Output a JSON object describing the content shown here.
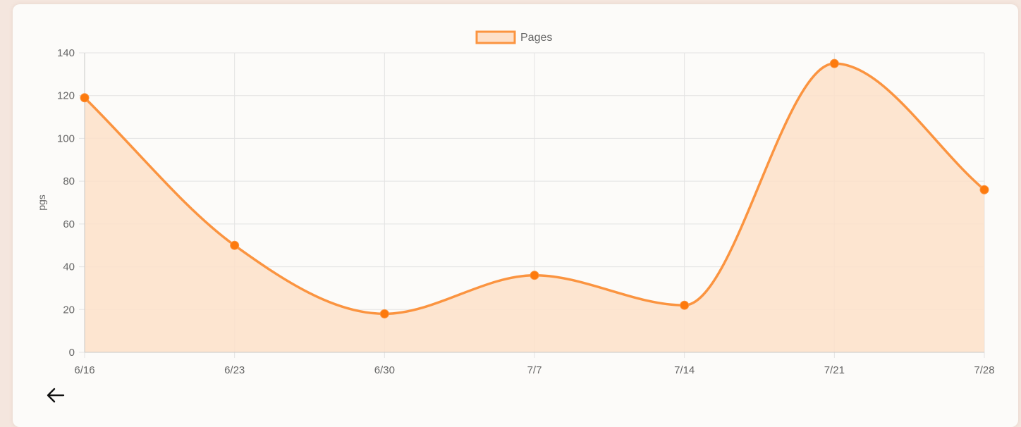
{
  "colors": {
    "page_bg": "#f4e6de",
    "card_bg": "#fcfbf9",
    "line": "#fb9440",
    "point": "#fd7a0d",
    "fill": "#fde0c9",
    "grid": "#e3e3e3",
    "axis_text": "#666666"
  },
  "nav": {
    "back_icon": "arrow-left-icon"
  },
  "chart_data": {
    "type": "area",
    "categories": [
      "6/16",
      "6/23",
      "6/30",
      "7/7",
      "7/14",
      "7/21",
      "7/28"
    ],
    "series": [
      {
        "name": "Pages",
        "values": [
          119,
          50,
          18,
          36,
          22,
          135,
          76
        ]
      }
    ],
    "ylabel": "pgs",
    "xlabel": "",
    "ylim": [
      0,
      140
    ],
    "yticks": [
      0,
      20,
      40,
      60,
      80,
      100,
      120,
      140
    ],
    "grid": true,
    "legend_position": "top-center",
    "smoothed": true
  }
}
